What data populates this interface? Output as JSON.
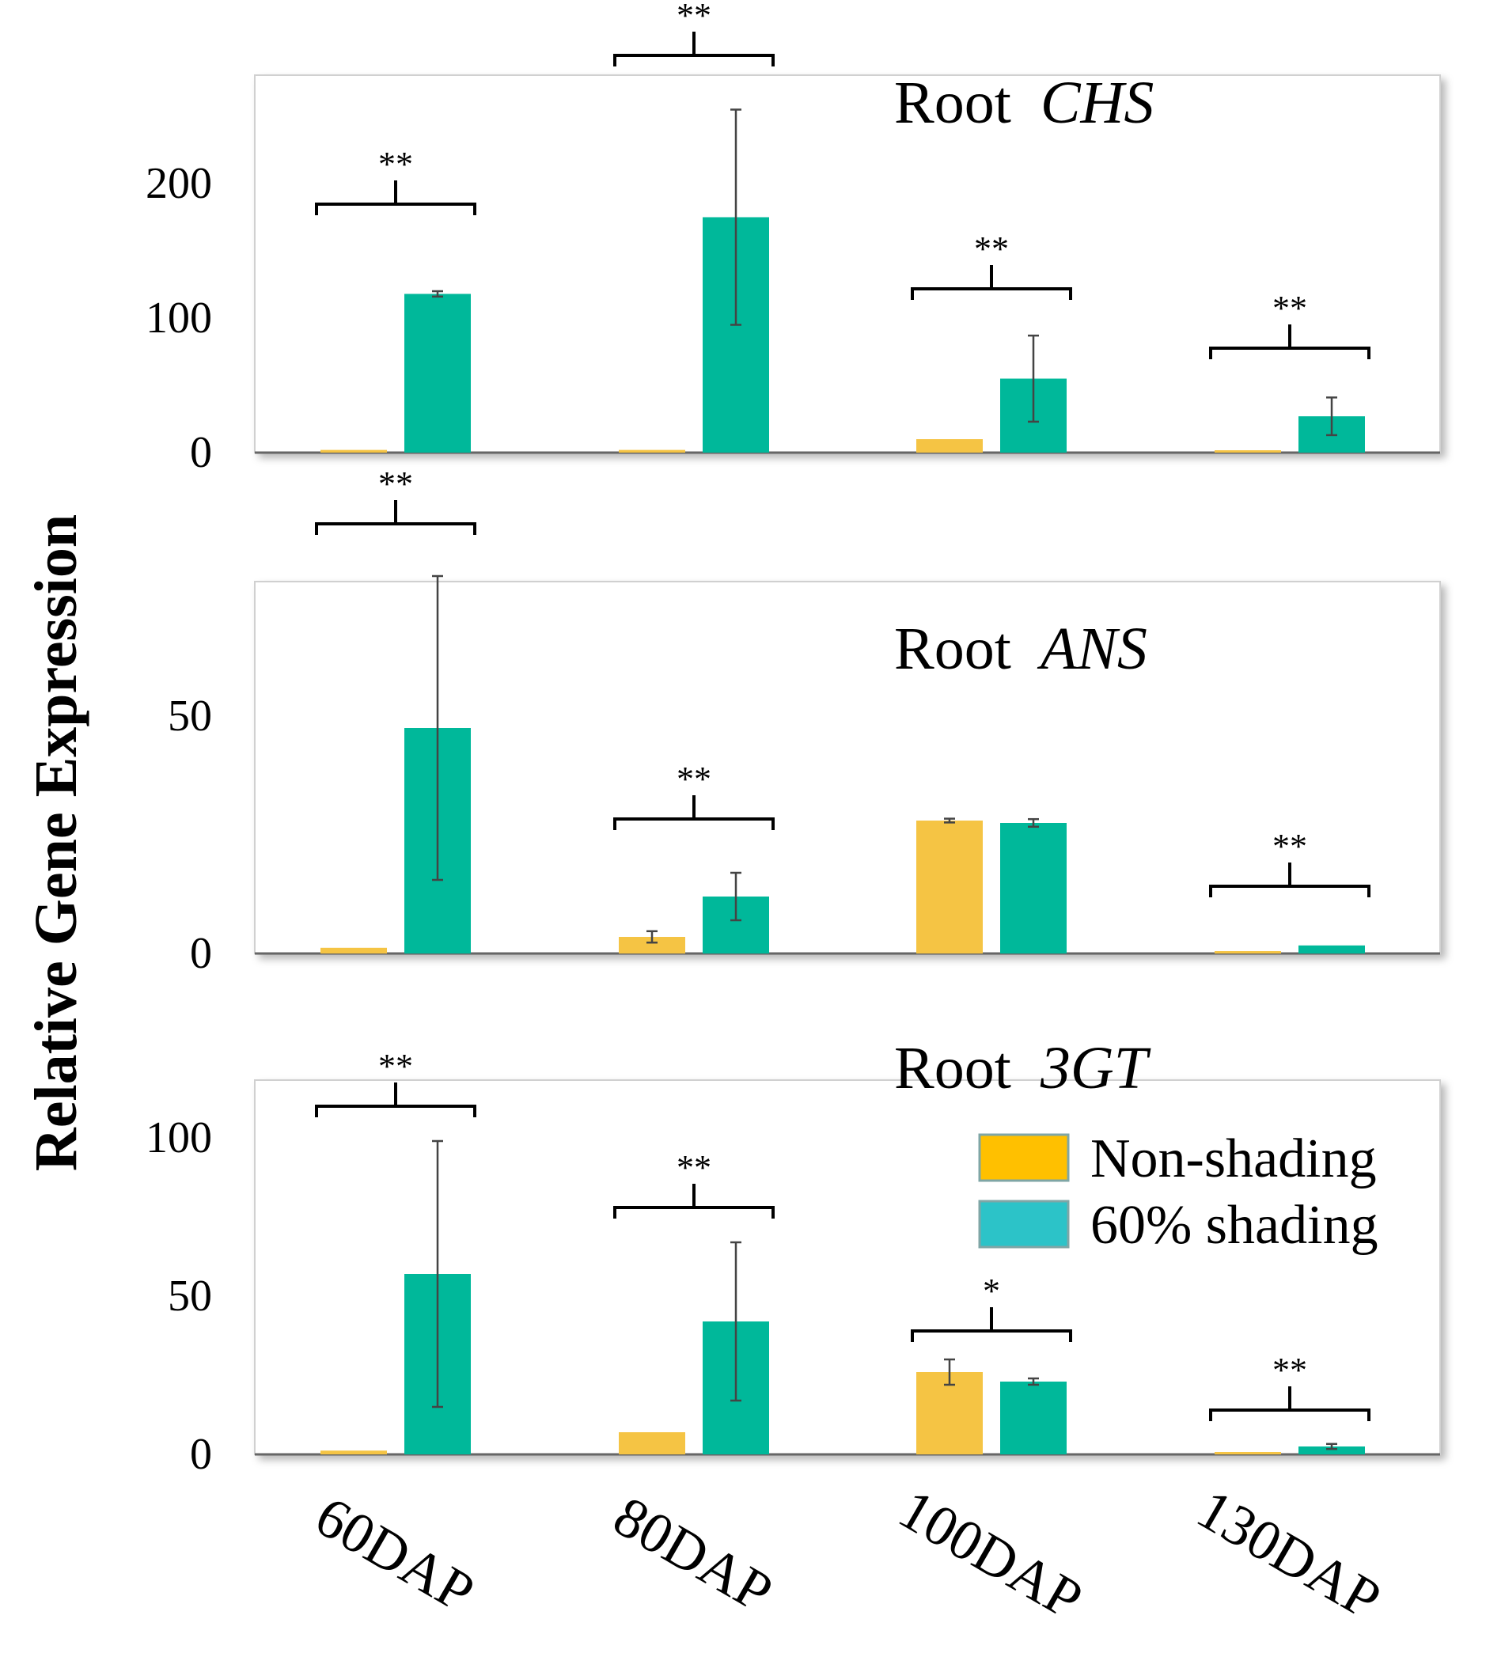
{
  "ylabel": "Relative Gene Expression",
  "colors": {
    "non_shading": "#f5c444",
    "shading": "#00b89a",
    "legend_non_shading": "#ffc000",
    "legend_shading": "#2cc3c8"
  },
  "legend": {
    "items": [
      "Non-shading",
      "60% shading"
    ],
    "placement": "inside bottom panel, right"
  },
  "x_categories": [
    "60DAP",
    "80DAP",
    "100DAP",
    "130DAP"
  ],
  "chart_data": [
    {
      "type": "bar",
      "title": "Root",
      "title_gene": "CHS",
      "categories": [
        "60DAP",
        "80DAP",
        "100DAP",
        "130DAP"
      ],
      "ylim": [
        0,
        250
      ],
      "yticks": [
        "0",
        "100",
        "200"
      ],
      "series": [
        {
          "name": "Non-shading",
          "values": [
            2,
            2,
            10,
            0.5
          ],
          "errors": [
            0.5,
            0.5,
            1,
            0.2
          ]
        },
        {
          "name": "60% shading",
          "values": [
            118,
            175,
            55,
            27
          ],
          "errors": [
            2,
            80,
            32,
            14
          ]
        }
      ],
      "significance": [
        "**",
        "**",
        "**",
        "**"
      ]
    },
    {
      "type": "bar",
      "title": "Root",
      "title_gene": "ANS",
      "categories": [
        "60DAP",
        "80DAP",
        "100DAP",
        "130DAP"
      ],
      "ylim": [
        0,
        80
      ],
      "yticks": [
        "0",
        "50"
      ],
      "series": [
        {
          "name": "Non-shading",
          "values": [
            1.2,
            3.5,
            28,
            0.3
          ],
          "errors": [
            0.3,
            1.2,
            0.4,
            0.1
          ]
        },
        {
          "name": "60% shading",
          "values": [
            47.5,
            12,
            27.5,
            1.7
          ],
          "errors": [
            32,
            5,
            0.8,
            0.3
          ]
        }
      ],
      "significance": [
        "**",
        "**",
        "",
        "**"
      ]
    },
    {
      "type": "bar",
      "title": "Root",
      "title_gene": "3GT",
      "categories": [
        "60DAP",
        "80DAP",
        "100DAP",
        "130DAP"
      ],
      "ylim": [
        0,
        110
      ],
      "yticks": [
        "0",
        "50",
        "100"
      ],
      "series": [
        {
          "name": "Non-shading",
          "values": [
            1.2,
            7,
            26,
            0.3
          ],
          "errors": [
            0.2,
            0.5,
            4,
            0.1
          ]
        },
        {
          "name": "60% shading",
          "values": [
            57,
            42,
            23,
            2.5
          ],
          "errors": [
            42,
            25,
            1,
            0.8
          ]
        }
      ],
      "significance": [
        "**",
        "**",
        "*",
        "**"
      ]
    }
  ]
}
